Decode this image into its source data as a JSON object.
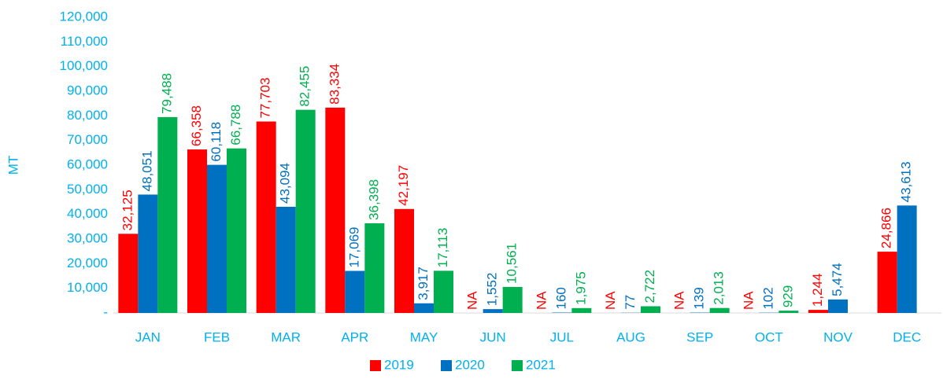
{
  "chart_data": {
    "type": "bar",
    "y_label": "MT",
    "categories": [
      "JAN",
      "FEB",
      "MAR",
      "APR",
      "MAY",
      "JUN",
      "JUL",
      "AUG",
      "SEP",
      "OCT",
      "NOV",
      "DEC"
    ],
    "series": [
      {
        "name": "2019",
        "color": "#ff0000",
        "values": [
          32125,
          66358,
          77703,
          83334,
          42197,
          null,
          null,
          null,
          null,
          null,
          1244,
          24866
        ],
        "value_labels": [
          "32,125",
          "66,358",
          "77,703",
          "83,334",
          "42,197",
          "NA",
          "NA",
          "NA",
          "NA",
          "NA",
          "1,244",
          "24,866"
        ]
      },
      {
        "name": "2020",
        "color": "#0070c0",
        "values": [
          48051,
          60118,
          43094,
          17069,
          3917,
          1552,
          160,
          77,
          139,
          102,
          5474,
          43613
        ],
        "value_labels": [
          "48,051",
          "60,118",
          "43,094",
          "17,069",
          "3,917",
          "1,552",
          "160",
          "77",
          "139",
          "102",
          "5,474",
          "43,613"
        ]
      },
      {
        "name": "2021",
        "color": "#00b050",
        "values": [
          79488,
          66788,
          82455,
          36398,
          17113,
          10561,
          1975,
          2722,
          2013,
          929,
          null,
          null
        ],
        "value_labels": [
          "79,488",
          "66,788",
          "82,455",
          "36,398",
          "17,113",
          "10,561",
          "1,975",
          "2,722",
          "2,013",
          "929",
          null,
          null
        ]
      }
    ],
    "ylim": [
      0,
      120000
    ],
    "yticks": [
      {
        "value": 0,
        "label": "-"
      },
      {
        "value": 10000,
        "label": "10,000"
      },
      {
        "value": 20000,
        "label": "20,000"
      },
      {
        "value": 30000,
        "label": "30,000"
      },
      {
        "value": 40000,
        "label": "40,000"
      },
      {
        "value": 50000,
        "label": "50,000"
      },
      {
        "value": 60000,
        "label": "60,000"
      },
      {
        "value": 70000,
        "label": "70,000"
      },
      {
        "value": 80000,
        "label": "80,000"
      },
      {
        "value": 90000,
        "label": "90,000"
      },
      {
        "value": 100000,
        "label": "100,000"
      },
      {
        "value": 110000,
        "label": "110,000"
      },
      {
        "value": 120000,
        "label": "120,000"
      }
    ],
    "grid": false,
    "legend": "bottom"
  }
}
